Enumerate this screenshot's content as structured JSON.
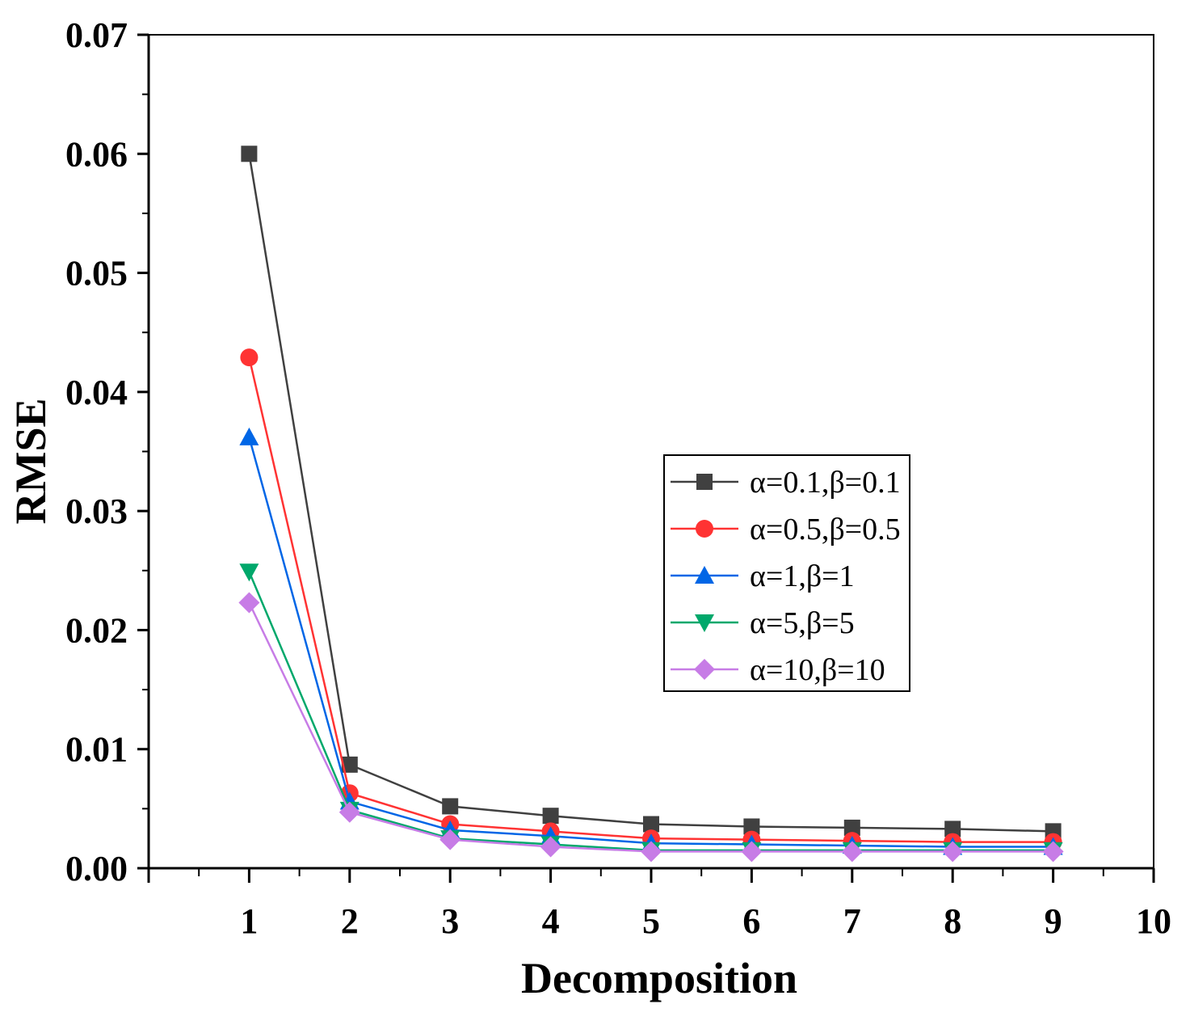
{
  "chart_data": {
    "type": "line",
    "title": "",
    "xlabel": "Decomposition",
    "ylabel": "RMSE",
    "xlim": [
      0,
      10
    ],
    "ylim": [
      0,
      0.07
    ],
    "x_ticks": [
      "1",
      "2",
      "3",
      "4",
      "5",
      "6",
      "7",
      "8",
      "9",
      "10"
    ],
    "y_ticks": [
      "0.00",
      "0.01",
      "0.02",
      "0.03",
      "0.04",
      "0.05",
      "0.06",
      "0.07"
    ],
    "x": [
      1,
      2,
      3,
      4,
      5,
      6,
      7,
      8,
      9
    ],
    "legend_position": "center-right",
    "series": [
      {
        "name": "α=0.1,β=0.1",
        "color": "#404040",
        "marker": "square",
        "values": [
          0.06,
          0.0087,
          0.0052,
          0.0044,
          0.0037,
          0.0035,
          0.0034,
          0.0033,
          0.0031
        ]
      },
      {
        "name": "α=0.5,β=0.5",
        "color": "#ff3333",
        "marker": "circle",
        "values": [
          0.0429,
          0.0063,
          0.0037,
          0.0031,
          0.0025,
          0.0024,
          0.0023,
          0.0022,
          0.0022
        ]
      },
      {
        "name": "α=1,β=1",
        "color": "#0066e6",
        "marker": "triangle-up",
        "values": [
          0.0362,
          0.0056,
          0.0032,
          0.0027,
          0.0021,
          0.002,
          0.0019,
          0.0018,
          0.0018
        ]
      },
      {
        "name": "α=5,β=5",
        "color": "#00a86b",
        "marker": "triangle-down",
        "values": [
          0.0249,
          0.0049,
          0.0025,
          0.002,
          0.0015,
          0.0015,
          0.0015,
          0.0015,
          0.0015
        ]
      },
      {
        "name": "α=10,β=10",
        "color": "#c77ce6",
        "marker": "diamond",
        "values": [
          0.0223,
          0.0047,
          0.0024,
          0.0018,
          0.0014,
          0.0014,
          0.0014,
          0.0014,
          0.0014
        ]
      }
    ]
  }
}
